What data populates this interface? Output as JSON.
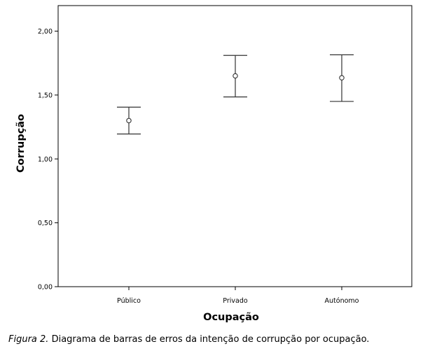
{
  "chart_data": {
    "type": "errorbar",
    "xlabel": "Ocupação",
    "ylabel": "Corrupção",
    "categories": [
      "Público",
      "Privado",
      "Autónomo"
    ],
    "series": [
      {
        "mean": [
          1.3,
          1.65,
          1.635
        ],
        "lower": [
          1.195,
          1.485,
          1.45
        ],
        "upper": [
          1.405,
          1.81,
          1.815
        ]
      }
    ],
    "ylim": [
      0,
      2.2
    ],
    "yticks": [
      0,
      0.5,
      1.0,
      1.5,
      2.0
    ],
    "ytick_labels": [
      "0,00",
      "0,50",
      "1,00",
      "1,50",
      "2,00"
    ],
    "grid": false
  },
  "caption": {
    "label": "Figura 2.",
    "text": "Diagrama de barras de erros da intenção de corrupção por ocupação."
  }
}
